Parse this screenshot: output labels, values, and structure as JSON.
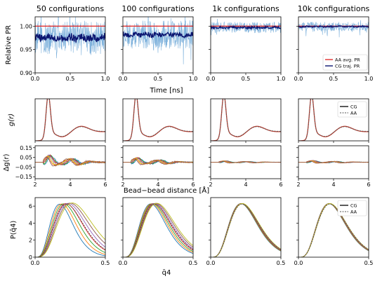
{
  "colors": {
    "light_blue": "#7fb2dc",
    "navy": "#0b1470",
    "red": "#e03030",
    "cg": "#000000",
    "aa": "#555555",
    "rdf": "#c0392b",
    "diff": [
      "#1f77b4",
      "#2ca02c",
      "#d62728",
      "#9467bd",
      "#bcbd22",
      "#ff7f0e",
      "#8c564b"
    ],
    "q4": [
      "#1f77b4",
      "#ff7f0e",
      "#2ca02c",
      "#d62728",
      "#9467bd",
      "#8c564b",
      "#bcbd22"
    ]
  },
  "chart_data": [
    {
      "type": "line",
      "row": "pr",
      "columns": [
        "50 configurations",
        "100 configurations",
        "1k configurations",
        "10k configurations"
      ],
      "ylabel": "Relative PR",
      "xlabel": "Time [ns]",
      "xlim": [
        0,
        1
      ],
      "ylim": [
        0.9,
        1.02
      ],
      "xticks": [
        "0.0",
        "0.5",
        "1.0"
      ],
      "yticks": [
        "0.90",
        "0.95",
        "1.00"
      ],
      "xtick_vals": [
        0,
        0.5,
        1
      ],
      "ytick_vals": [
        0.9,
        0.95,
        1.0
      ],
      "aa_avg_pr": [
        1.0,
        1.0,
        1.0,
        1.0
      ],
      "cg_traj_pr_mean": [
        0.975,
        0.982,
        0.997,
        0.999
      ],
      "cg_traj_pr_noise": [
        0.008,
        0.005,
        0.002,
        0.0015
      ],
      "scatter_spread": [
        0.035,
        0.03,
        0.012,
        0.01
      ],
      "legend": [
        "AA avg. PR",
        "CG traj. PR"
      ],
      "legend_position": "lower-right of 4th panel"
    },
    {
      "type": "line",
      "row": "rdf",
      "ylabel": "g(r)",
      "xlim": [
        2,
        6
      ],
      "ylim": [
        0,
        4.2
      ],
      "peak_r": 2.75,
      "peak_g": 3.75,
      "legend": [
        "CG",
        "AA"
      ],
      "legend_position": "upper-right of 4th panel"
    },
    {
      "type": "line",
      "row": "rdf_diff",
      "ylabel": "Δg(r)",
      "xlabel": "Bead−bead distance [Å]",
      "xlim": [
        2,
        6
      ],
      "ylim": [
        -0.17,
        0.17
      ],
      "xticks": [
        "2",
        "4",
        "6"
      ],
      "yticks": [
        "0.15",
        "0.05",
        "−0.05",
        "−0.15"
      ],
      "xtick_vals": [
        2,
        4,
        6
      ],
      "ytick_vals": [
        0.15,
        0.05,
        -0.05,
        -0.15
      ],
      "amplitude": [
        0.12,
        0.08,
        0.025,
        0.03
      ]
    },
    {
      "type": "line",
      "row": "q4",
      "ylabel": "P(q̄4)",
      "xlabel": "q̄4",
      "xlim": [
        0,
        0.5
      ],
      "ylim": [
        0,
        7
      ],
      "xticks": [
        "0.0",
        "0.5"
      ],
      "yticks": [
        "0",
        "2",
        "4",
        "6"
      ],
      "xtick_vals": [
        0,
        0.5
      ],
      "ytick_vals": [
        0,
        2,
        4,
        6
      ],
      "peak": 6.3,
      "mode": 0.22,
      "cg_spread": [
        0.025,
        0.012,
        0.003,
        0.002
      ],
      "legend": [
        "CG",
        "AA"
      ],
      "legend_position": "upper-right of 4th panel"
    }
  ]
}
